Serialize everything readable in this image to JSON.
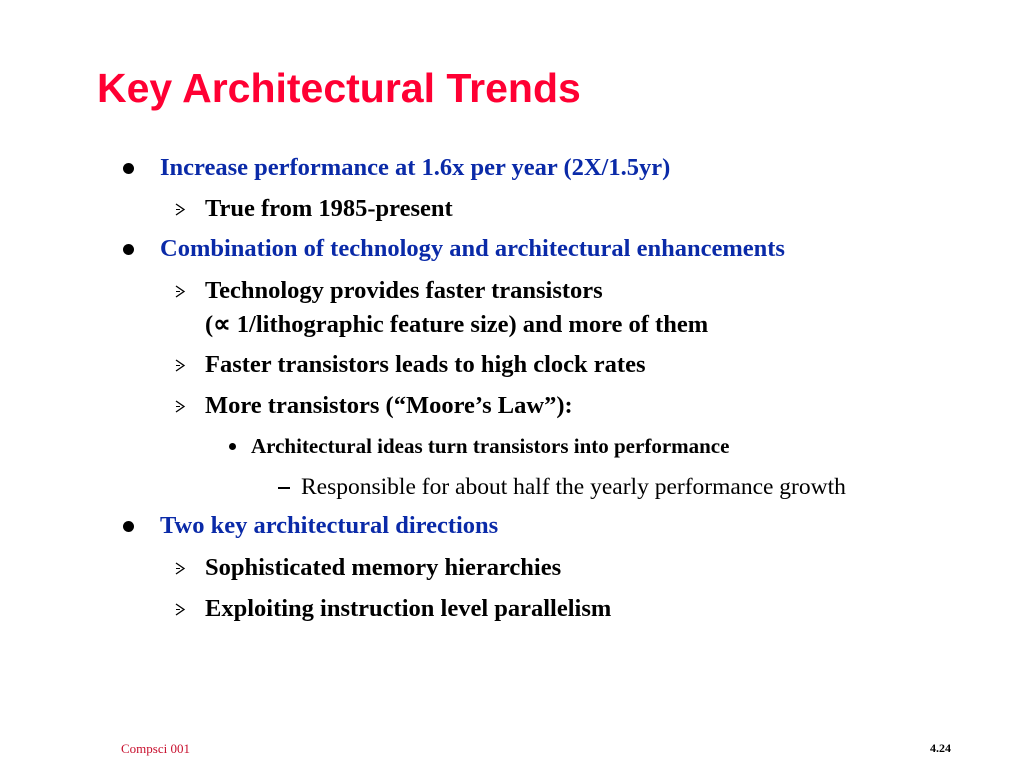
{
  "slide": {
    "title": "Key Architectural Trends",
    "items": [
      {
        "level": 1,
        "text": "Increase performance at 1.6x per year (2X/1.5yr)"
      },
      {
        "level": 2,
        "text": "True from 1985-present"
      },
      {
        "level": 1,
        "text": "Combination of technology and architectural enhancements"
      },
      {
        "level": 2,
        "text": "Technology provides faster transistors",
        "continuation": "(∝ 1/lithographic feature size) and more of them"
      },
      {
        "level": 2,
        "text": "Faster transistors leads to high clock rates"
      },
      {
        "level": 2,
        "text": "More transistors (“Moore’s Law”):"
      },
      {
        "level": 3,
        "text": "Architectural ideas turn transistors into performance"
      },
      {
        "level": 4,
        "text": "Responsible for about half the yearly performance growth"
      },
      {
        "level": 1,
        "text": "Two key architectural directions"
      },
      {
        "level": 2,
        "text": "Sophisticated memory hierarchies"
      },
      {
        "level": 2,
        "text": "Exploiting instruction level parallelism"
      }
    ]
  },
  "footer": {
    "course": "Compsci 001",
    "page_number": "4.24"
  },
  "colors": {
    "title": "#ff0033",
    "level1_text": "#0a2aa8",
    "body_text": "#000000",
    "footer_course": "#c8102e"
  },
  "icons": {
    "level1_marker": "filled-circle-bullet",
    "level2_marker": "arrowhead-bullet",
    "level3_marker": "small-dot-bullet",
    "level4_marker": "dash-bullet"
  }
}
